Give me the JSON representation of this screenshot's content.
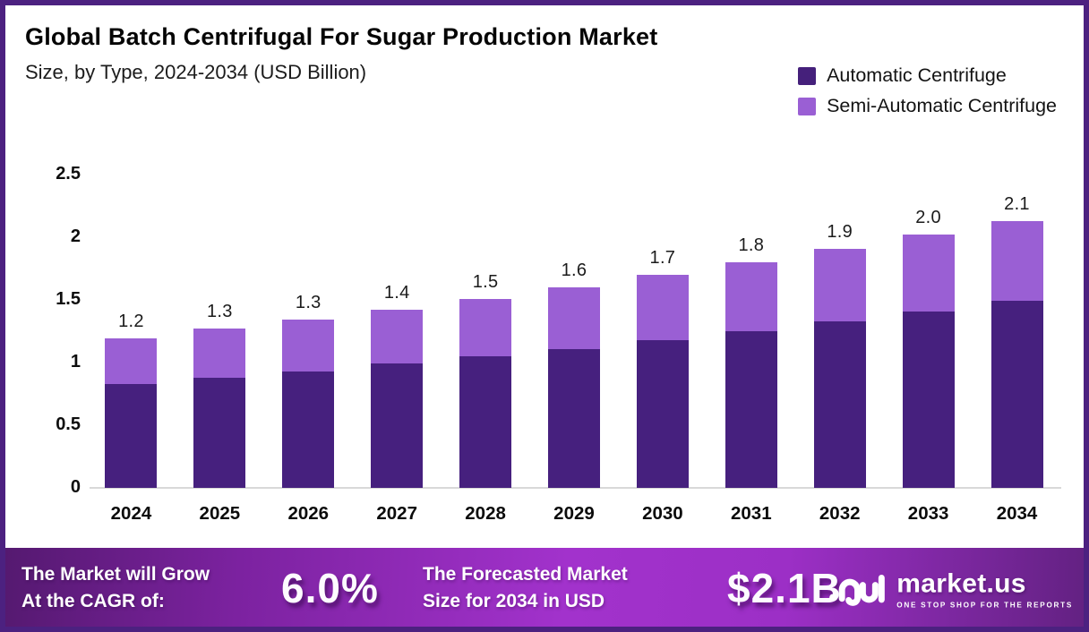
{
  "header": {
    "title": "Global Batch Centrifugal For Sugar Production Market",
    "subtitle": "Size, by Type, 2024-2034 (USD Billion)"
  },
  "legend": [
    {
      "label": "Automatic Centrifuge",
      "color": "#45207b"
    },
    {
      "label": "Semi-Automatic Centrifuge",
      "color": "#9a5fd4"
    }
  ],
  "chart_data": {
    "type": "bar",
    "stacked": true,
    "title": "Global Batch Centrifugal For Sugar Production Market Size, by Type, 2024-2034 (USD Billion)",
    "xlabel": "",
    "ylabel": "USD Billion",
    "categories": [
      "2024",
      "2025",
      "2026",
      "2027",
      "2028",
      "2029",
      "2030",
      "2031",
      "2032",
      "2033",
      "2034"
    ],
    "series": [
      {
        "name": "Automatic Centrifuge",
        "color": "#46207e",
        "values": [
          0.83,
          0.88,
          0.93,
          0.99,
          1.05,
          1.11,
          1.18,
          1.25,
          1.33,
          1.41,
          1.49
        ]
      },
      {
        "name": "Semi-Automatic Centrifuge",
        "color": "#9a5fd4",
        "values": [
          0.36,
          0.39,
          0.41,
          0.43,
          0.46,
          0.49,
          0.52,
          0.55,
          0.58,
          0.61,
          0.64
        ]
      }
    ],
    "total_labels": [
      "1.2",
      "1.3",
      "1.3",
      "1.4",
      "1.5",
      "1.6",
      "1.7",
      "1.8",
      "1.9",
      "2.0",
      "2.1"
    ],
    "y_ticks": [
      "2.5",
      "2",
      "1.5",
      "1",
      "0.5",
      "0"
    ],
    "ylim": [
      0,
      2.5
    ],
    "grid": false,
    "legend_position": "top-right"
  },
  "banner": {
    "cagr_line1": "The Market will Grow",
    "cagr_line2": "At the CAGR of:",
    "cagr_value": "6.0%",
    "forecast_line1": "The Forecasted Market",
    "forecast_line2": "Size for 2034 in USD",
    "forecast_value": "$2.1B",
    "logo_name": "market.us",
    "logo_tagline": "ONE STOP SHOP FOR THE REPORTS"
  },
  "colors": {
    "border": "#4c2180",
    "automatic": "#46207e",
    "semi_automatic": "#9a5fd4",
    "axis_line": "#d9d9d9"
  }
}
